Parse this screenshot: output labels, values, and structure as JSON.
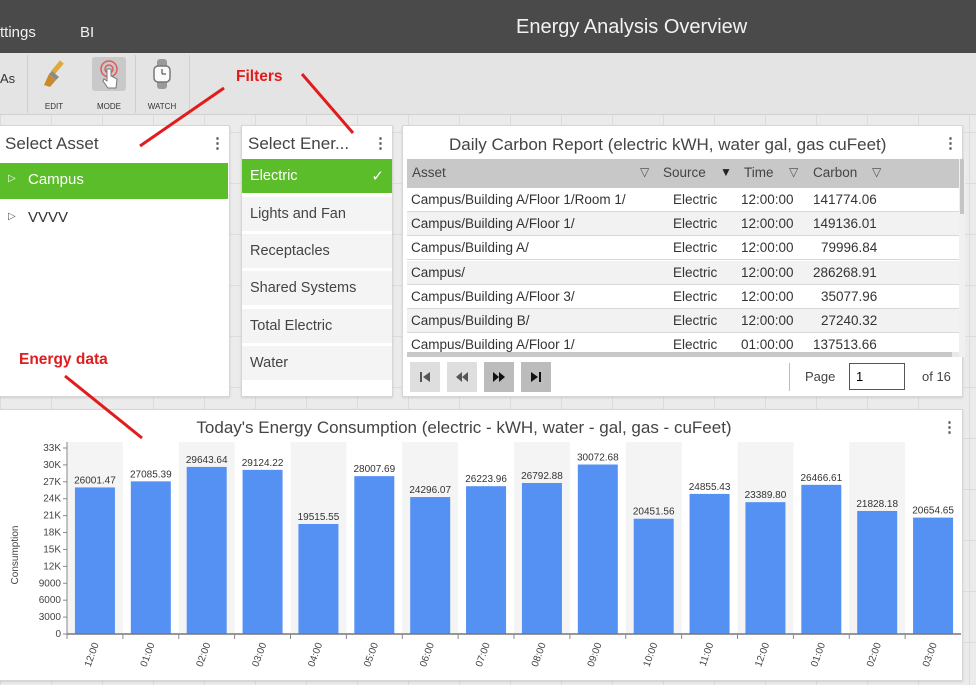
{
  "header": {
    "menu": [
      "ttings",
      "BI"
    ],
    "title": "Energy Analysis Overview"
  },
  "toolbar": {
    "left_fragment": "As",
    "tools": [
      {
        "label": "EDIT",
        "icon": "brush-icon"
      },
      {
        "label": "MODE",
        "icon": "touch-icon"
      },
      {
        "label": "WATCH",
        "icon": "watch-icon"
      }
    ]
  },
  "annotations": {
    "filters": "Filters",
    "energy_data": "Energy data"
  },
  "asset_panel": {
    "title": "Select Asset",
    "items": [
      {
        "label": "Campus",
        "selected": true
      },
      {
        "label": "VVVV",
        "selected": false
      }
    ]
  },
  "energy_panel": {
    "title": "Select Ener...",
    "items": [
      {
        "label": "Electric",
        "selected": true
      },
      {
        "label": "Lights and Fan"
      },
      {
        "label": "Receptacles"
      },
      {
        "label": "Shared Systems"
      },
      {
        "label": "Total Electric"
      },
      {
        "label": "Water"
      }
    ]
  },
  "report": {
    "title": "Daily Carbon Report (electric kWH, water gal, gas cuFeet)",
    "columns": [
      "Asset",
      "Source",
      "Time",
      "Carbon"
    ],
    "rows": [
      [
        "Campus/Building A/Floor 1/Room 1/",
        "Electric",
        "12:00:00",
        "141774.06"
      ],
      [
        "Campus/Building A/Floor 1/",
        "Electric",
        "12:00:00",
        "149136.01"
      ],
      [
        "Campus/Building A/",
        "Electric",
        "12:00:00",
        "79996.84"
      ],
      [
        "Campus/",
        "Electric",
        "12:00:00",
        "286268.91"
      ],
      [
        "Campus/Building A/Floor 3/",
        "Electric",
        "12:00:00",
        "35077.96"
      ],
      [
        "Campus/Building B/",
        "Electric",
        "12:00:00",
        "27240.32"
      ],
      [
        "Campus/Building A/Floor 1/",
        "Electric",
        "01:00:00",
        "137513.66"
      ]
    ],
    "pager": {
      "page_label": "Page",
      "page_value": "1",
      "of_label": "of 16"
    }
  },
  "colors": {
    "accent": "#5cbd2a",
    "bar": "#5591f2",
    "annotation": "#e11c1c"
  },
  "chart_data": {
    "type": "bar",
    "title": "Today's Energy Consumption (electric - kWH, water - gal, gas - cuFeet)",
    "ylabel": "Consumption",
    "xlabel": "",
    "ylim": [
      0,
      33000
    ],
    "yticks": [
      0,
      3000,
      6000,
      9000,
      12000,
      15000,
      18000,
      21000,
      24000,
      27000,
      30000,
      33000
    ],
    "ytick_labels": [
      "0",
      "3000",
      "6000",
      "9000",
      "12K",
      "15K",
      "18K",
      "21K",
      "24K",
      "27K",
      "30K",
      "33K"
    ],
    "categories": [
      "12:00",
      "01:00",
      "02:00",
      "03:00",
      "04:00",
      "05:00",
      "06:00",
      "07:00",
      "08:00",
      "09:00",
      "10:00",
      "11:00",
      "12:00",
      "01:00",
      "02:00",
      "03:00"
    ],
    "values": [
      26001.47,
      27085.39,
      29643.64,
      29124.22,
      19515.55,
      28007.69,
      24296.07,
      26223.96,
      26792.88,
      30072.68,
      20451.56,
      24855.43,
      23389.8,
      26466.61,
      21828.18,
      20654.65
    ],
    "value_labels": [
      "26001.47",
      "27085.39",
      "29643.64",
      "29124.22",
      "19515.55",
      "28007.69",
      "24296.07",
      "26223.96",
      "26792.88",
      "30072.68",
      "20451.56",
      "24855.43",
      "23389.80",
      "26466.61",
      "21828.18",
      "20654.65"
    ],
    "grid": false,
    "legend": "none"
  }
}
